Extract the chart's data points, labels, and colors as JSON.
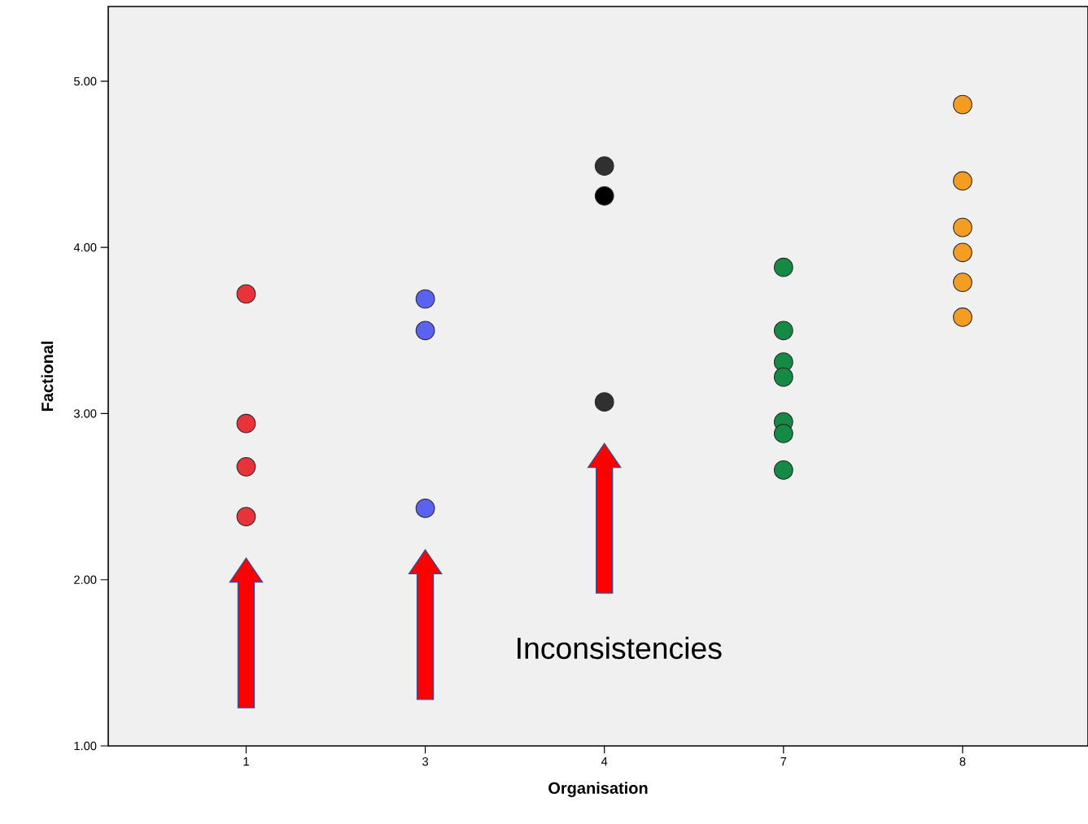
{
  "chart_data": {
    "type": "scatter",
    "xlabel": "Organisation",
    "ylabel": "Factional",
    "categories": [
      "1",
      "3",
      "4",
      "7",
      "8"
    ],
    "ylim": [
      1,
      5.45
    ],
    "yticks": [
      {
        "value": 1,
        "label": "1.00"
      },
      {
        "value": 2,
        "label": "2.00"
      },
      {
        "value": 3,
        "label": "3.00"
      },
      {
        "value": 4,
        "label": "4.00"
      },
      {
        "value": 5,
        "label": "5.00"
      }
    ],
    "marker": "circle",
    "grid": false,
    "annotations": [
      "Inconsistencies"
    ],
    "series": [
      {
        "color": "#e8333b",
        "x": [
          "1",
          "1",
          "1",
          "1"
        ],
        "values": [
          3.72,
          2.94,
          2.68,
          2.38
        ]
      },
      {
        "color": "#5a62f0",
        "x": [
          "3",
          "3",
          "3"
        ],
        "values": [
          3.69,
          3.5,
          2.43
        ]
      },
      {
        "colors": [
          "#303030",
          "#000000",
          "#303030"
        ],
        "x": [
          "4",
          "4",
          "4"
        ],
        "values": [
          4.49,
          4.31,
          3.07
        ]
      },
      {
        "color": "#148a45",
        "x": [
          "7",
          "7",
          "7",
          "7",
          "7",
          "7",
          "7"
        ],
        "values": [
          3.88,
          3.5,
          3.31,
          3.22,
          2.95,
          2.88,
          2.66
        ]
      },
      {
        "color": "#f59c22",
        "x": [
          "8",
          "8",
          "8",
          "8",
          "8",
          "8"
        ],
        "values": [
          4.86,
          4.4,
          4.12,
          3.97,
          3.79,
          3.58
        ]
      }
    ]
  }
}
